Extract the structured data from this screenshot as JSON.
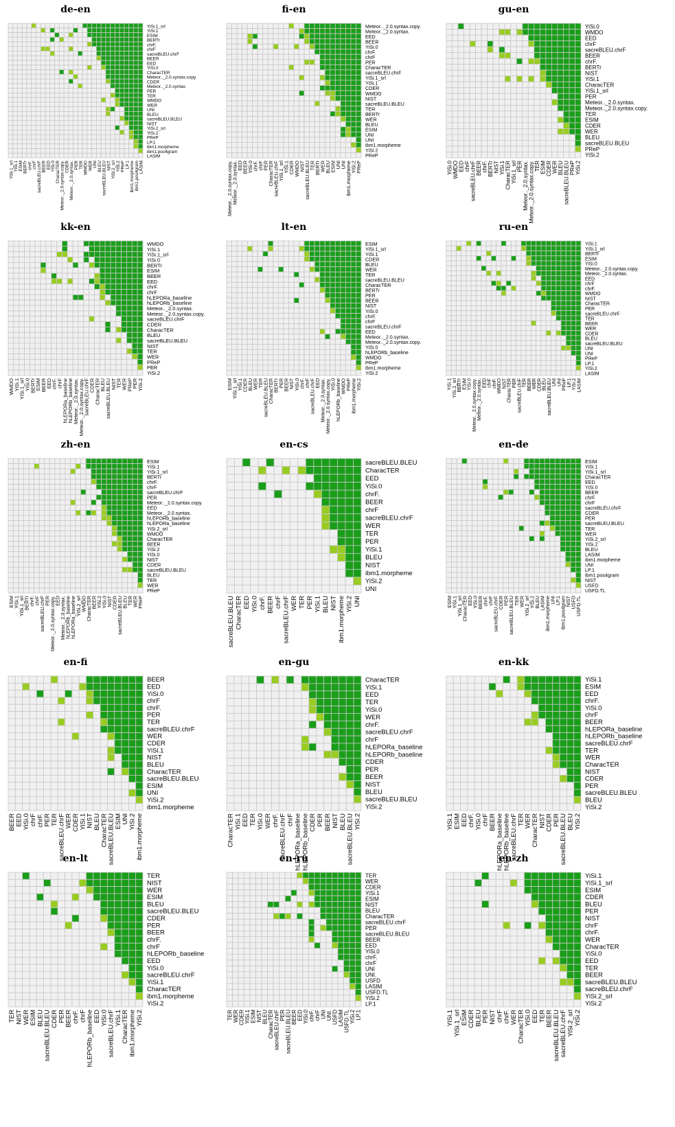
{
  "figure": {
    "panels": [
      "de-en",
      "fi-en",
      "gu-en",
      "kk-en",
      "lt-en",
      "ru-en",
      "zh-en",
      "en-cs",
      "en-de",
      "en-fi",
      "en-gu",
      "en-kk",
      "en-lt",
      "en-ru",
      "en-zh"
    ]
  },
  "colors": {
    "sig_strong": "#1a9e1a",
    "sig_weak": "#99cc22",
    "not_sig": "#f0f0f0",
    "grid": "#c8c8c8"
  },
  "chart_data": [
    {
      "type": "heatmap",
      "title": "de-en",
      "metrics": [
        "YiSi.1_srl",
        "YiSi.1",
        "ESIM",
        "BERTr",
        "chrF.",
        "chrF",
        "sacreBLEU.chrF",
        "BEER",
        "EED",
        "YiSi.0",
        "CharacTER",
        "Meteor.._2.0.syntax.copy.",
        "CDER",
        "Meteor.._2.0.syntax.",
        "PER",
        "TER",
        "WMDO",
        "WER",
        "UNI",
        "BLEU",
        "sacreBLEU.BLEU",
        "NIST",
        "YiSi.2_srl",
        "YiSi.2",
        "PReP",
        "LP.1",
        "ibm1.morpheme",
        "ibm1.pos4gram",
        "LASIM"
      ]
    },
    {
      "type": "heatmap",
      "title": "fi-en",
      "metrics": [
        "Meteor.._2.0.syntax.copy.",
        "Meteor.._2.0.syntax.",
        "EED",
        "BEER",
        "YiSi.0",
        "chrF.",
        "chrF",
        "PER",
        "CharacTER",
        "sacreBLEU.chrF",
        "YiSi.1_srl",
        "YiSi.1",
        "CDER",
        "WMDO",
        "NIST",
        "sacreBLEU.BLEU",
        "TER",
        "BERTr",
        "WER",
        "BLEU",
        "ESIM",
        "UNI",
        "UNI",
        "ibm1.morpheme",
        "YiSi.2",
        "PReP"
      ]
    },
    {
      "type": "heatmap",
      "title": "gu-en",
      "metrics": [
        "YiSi.0",
        "WMDO",
        "EED",
        "chrF",
        "sacreBLEU.chrF",
        "BEER",
        "chrF.",
        "BERTr",
        "NIST",
        "YiSi.1",
        "CharacTER",
        "YiSi.1_srl",
        "PER",
        "Meteor.._2.0.syntax.",
        "Meteor.._2.0.syntax.copy.",
        "TER",
        "ESIM",
        "CDER",
        "WER",
        "BLEU",
        "sacreBLEU.BLEU",
        "PReP",
        "YiSi.2"
      ]
    },
    {
      "type": "heatmap",
      "title": "kk-en",
      "metrics": [
        "WMDO",
        "YiSi.1",
        "YiSi.1_srl",
        "YiSi.0",
        "BERTr",
        "ESIM",
        "BEER",
        "EED",
        "chrF.",
        "chrF",
        "hLEPORa_baseline",
        "hLEPORb_baseline",
        "Meteor.._2.0.syntax.",
        "Meteor.._2.0.syntax.copy.",
        "sacreBLEU.chrF",
        "CDER",
        "CharacTER",
        "BLEU",
        "sacreBLEU.BLEU",
        "NIST",
        "TER",
        "WER",
        "PReP",
        "PER",
        "YiSi.2"
      ]
    },
    {
      "type": "heatmap",
      "title": "lt-en",
      "metrics": [
        "ESIM",
        "YiSi.1_srl",
        "YiSi.1",
        "CDER",
        "BLEU",
        "WER",
        "TER",
        "sacreBLEU.BLEU",
        "CharacTER",
        "BERTr",
        "PER",
        "BEER",
        "NIST",
        "YiSi.0",
        "chrF.",
        "chrF",
        "sacreBLEU.chrF",
        "EED",
        "Meteor.._2.0.syntax.",
        "Meteor.._2.0.syntax.copy.",
        "YiSi.0",
        "hLEPORb_baseline",
        "WMDO",
        "PReP",
        "ibm1.morpheme",
        "YiSi.2"
      ]
    },
    {
      "type": "heatmap",
      "title": "ru-en",
      "metrics": [
        "YiSi.1",
        "YiSi.1_srl",
        "BERTr",
        "ESIM",
        "YiSi.0",
        "Meteor.._2.0.syntax.copy.",
        "Meteor.._2.0.syntax.",
        "EED",
        "chrF",
        "chrF.",
        "WMDO",
        "NIST",
        "CharacTER",
        "PER",
        "sacreBLEU.chrF",
        "TER",
        "BEER",
        "WER",
        "CDER",
        "BLEU",
        "sacreBLEU.BLEU",
        "UNI",
        "UNI",
        "PReP",
        "LP.1",
        "YiSi.2",
        "LASIM"
      ]
    },
    {
      "type": "heatmap",
      "title": "zh-en",
      "metrics": [
        "ESIM",
        "YiSi.1",
        "YiSi.1_srl",
        "BERTr",
        "chrF.",
        "chrF",
        "sacreBLEU.chrF",
        "PER",
        "Meteor.._2.0.syntax.copy.",
        "EED",
        "Meteor.._2.0.syntax.",
        "hLEPORb_baseline",
        "hLEPORa_baseline",
        "YiSi.2_srl",
        "WMDO",
        "CharacTER",
        "BEER",
        "YiSi.2",
        "YiSi.0",
        "NIST",
        "CDER",
        "sacreBLEU.BLEU",
        "BLEU",
        "TER",
        "WER",
        "PReP"
      ]
    },
    {
      "type": "heatmap",
      "title": "en-cs",
      "metrics": [
        "sacreBLEU.BLEU",
        "CharacTER",
        "EED",
        "YiSi.0",
        "chrF.",
        "BEER",
        "chrF",
        "sacreBLEU.chrF",
        "WER",
        "TER",
        "PER",
        "YiSi.1",
        "BLEU",
        "NIST",
        "ibm1.morpheme",
        "YiSi.2",
        "UNI"
      ]
    },
    {
      "type": "heatmap",
      "title": "en-de",
      "metrics": [
        "ESIM",
        "YiSi.1",
        "YiSi.1_srl",
        "CharacTER",
        "EED",
        "YiSi.0",
        "BEER",
        "chrF.",
        "chrF",
        "sacreBLEU.chrF",
        "CDER",
        "PER",
        "sacreBLEU.BLEU",
        "TER",
        "WER",
        "YiSi.2_srl",
        "YiSi.2",
        "BLEU",
        "LASIM",
        "ibm1.morpheme",
        "UNI",
        "LP.1",
        "ibm1.pos4gram",
        "NIST",
        "USFD",
        "USFD.TL"
      ]
    },
    {
      "type": "heatmap",
      "title": "en-fi",
      "metrics": [
        "BEER",
        "EED",
        "YiSi.0",
        "chrF",
        "chrF.",
        "PER",
        "TER",
        "sacreBLEU.chrF",
        "WER",
        "CDER",
        "YiSi.1",
        "NIST",
        "BLEU",
        "CharacTER",
        "sacreBLEU.BLEU",
        "ESIM",
        "UNI",
        "YiSi.2",
        "ibm1.morpheme"
      ]
    },
    {
      "type": "heatmap",
      "title": "en-gu",
      "metrics": [
        "CharacTER",
        "YiSi.1",
        "EED",
        "TER",
        "YiSi.0",
        "WER",
        "chrF.",
        "sacreBLEU.chrF",
        "chrF",
        "hLEPORa_baseline",
        "hLEPORb_baseline",
        "CDER",
        "PER",
        "BEER",
        "NIST",
        "BLEU",
        "sacreBLEU.BLEU",
        "YiSi.2"
      ]
    },
    {
      "type": "heatmap",
      "title": "en-kk",
      "metrics": [
        "YiSi.1",
        "ESIM",
        "EED",
        "chrF.",
        "YiSi.0",
        "chrF",
        "BEER",
        "hLEPORa_baseline",
        "hLEPORb_baseline",
        "sacreBLEU.chrF",
        "TER",
        "WER",
        "CharacTER",
        "NIST",
        "CDER",
        "PER",
        "sacreBLEU.BLEU",
        "BLEU",
        "YiSi.2"
      ]
    },
    {
      "type": "heatmap",
      "title": "en-lt",
      "metrics": [
        "TER",
        "NIST",
        "WER",
        "ESIM",
        "BLEU",
        "sacreBLEU.BLEU",
        "CDER",
        "PER",
        "BEER",
        "chrF.",
        "chrF",
        "hLEPORb_baseline",
        "EED",
        "YiSi.0",
        "sacreBLEU.chrF",
        "YiSi.1",
        "CharacTER",
        "ibm1.morpheme",
        "YiSi.2"
      ]
    },
    {
      "type": "heatmap",
      "title": "en-ru",
      "metrics": [
        "TER",
        "WER",
        "CDER",
        "YiSi.1",
        "ESIM",
        "NIST",
        "BLEU",
        "CharacTER",
        "sacreBLEU.chrF",
        "PER",
        "sacreBLEU.BLEU",
        "BEER",
        "EED",
        "YiSi.0",
        "chrF.",
        "chrF",
        "UNI",
        "UNI.",
        "USFD",
        "LASIM",
        "USFD.TL",
        "YiSi.2",
        "LP.1"
      ]
    },
    {
      "type": "heatmap",
      "title": "en-zh",
      "metrics": [
        "YiSi.1",
        "YiSi.1_srl",
        "ESIM",
        "CDER",
        "BLEU",
        "PER",
        "NIST",
        "chrF",
        "chrF.",
        "WER",
        "CharacTER",
        "YiSi.0",
        "EED",
        "TER",
        "BEER",
        "sacreBLEU.BLEU",
        "sacreBLEU.chrF",
        "YiSi.2_srl",
        "YiSi.2"
      ]
    }
  ]
}
